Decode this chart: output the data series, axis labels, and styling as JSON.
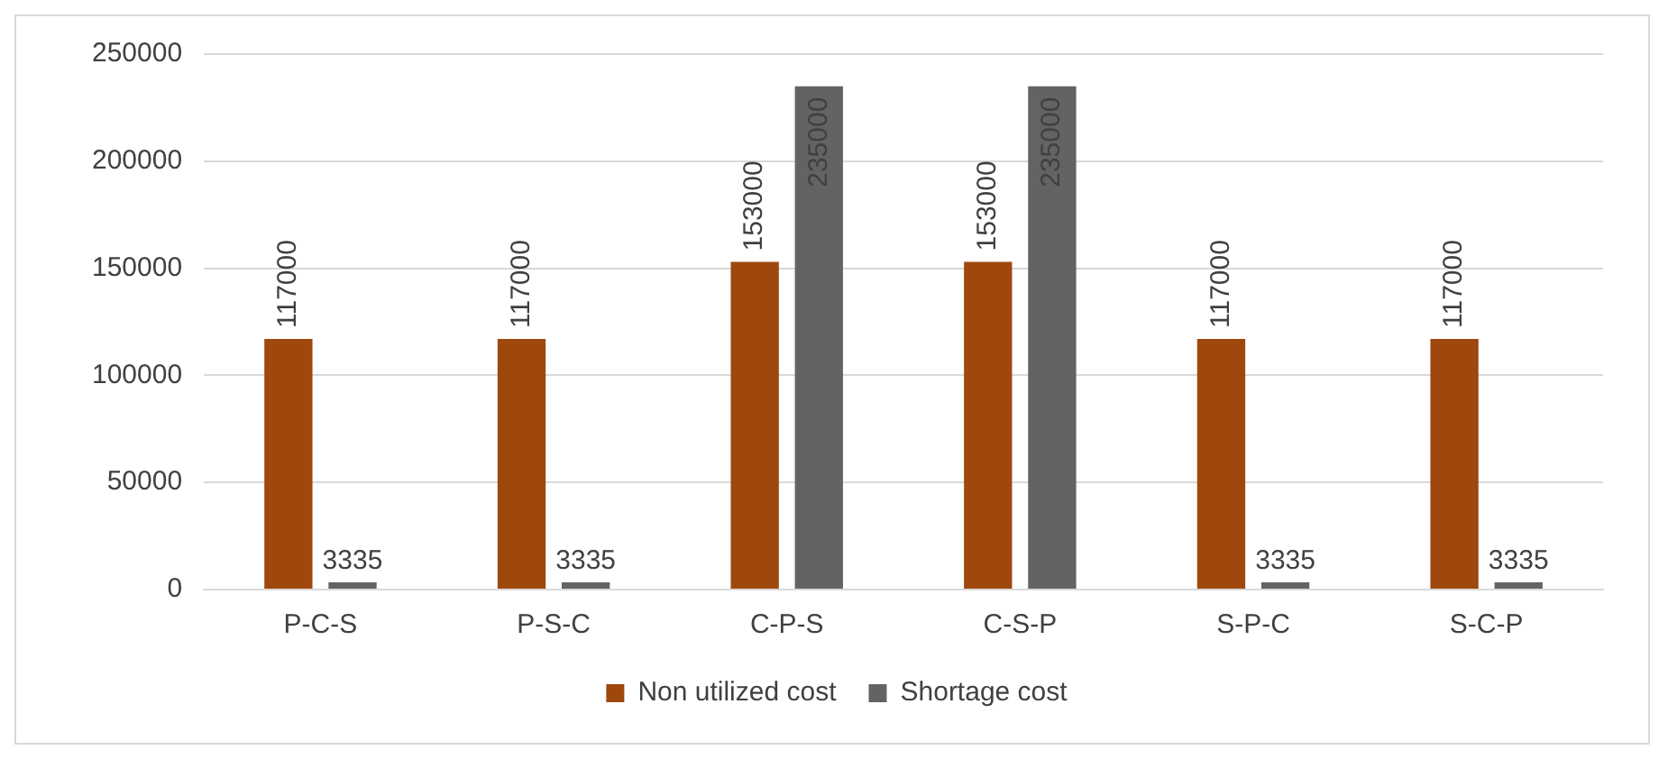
{
  "chart_data": {
    "type": "bar",
    "categories": [
      "P-C-S",
      "P-S-C",
      "C-P-S",
      "C-S-P",
      "S-P-C",
      "S-C-P"
    ],
    "series": [
      {
        "name": "Non utilized cost",
        "color": "#9e480e",
        "values": [
          117000,
          117000,
          153000,
          153000,
          117000,
          117000
        ]
      },
      {
        "name": "Shortage cost",
        "color": "#636363",
        "values": [
          3335,
          3335,
          235000,
          235000,
          3335,
          3335
        ]
      }
    ],
    "ylim": [
      0,
      250000
    ],
    "yticks": [
      0,
      50000,
      100000,
      150000,
      200000,
      250000
    ],
    "grid": "y",
    "legend": "bottom",
    "data_labels": true
  }
}
